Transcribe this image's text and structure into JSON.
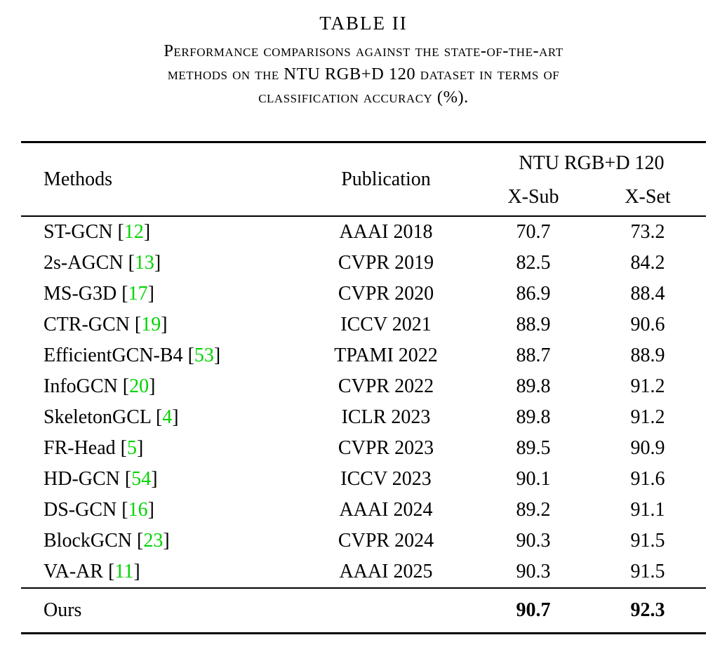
{
  "title": "TABLE II",
  "caption": {
    "lines": [
      "Performance comparisons against the state-of-the-art",
      "methods on the NTU RGB+D 120 dataset in terms of",
      "classification accuracy (%)."
    ]
  },
  "colors": {
    "citation_green": "#00d400"
  },
  "table": {
    "citation_format": {
      "open": "[",
      "close": "]"
    },
    "headers": {
      "methods": "Methods",
      "publication": "Publication",
      "group": "NTU RGB+D 120",
      "xsub": "X-Sub",
      "xset": "X-Set"
    },
    "rows": [
      {
        "method": "ST-GCN",
        "cite": "12",
        "publication": "AAAI 2018",
        "xsub": "70.7",
        "xset": "73.2"
      },
      {
        "method": "2s-AGCN",
        "cite": "13",
        "publication": "CVPR 2019",
        "xsub": "82.5",
        "xset": "84.2"
      },
      {
        "method": "MS-G3D",
        "cite": "17",
        "publication": "CVPR 2020",
        "xsub": "86.9",
        "xset": "88.4"
      },
      {
        "method": "CTR-GCN",
        "cite": "19",
        "publication": "ICCV 2021",
        "xsub": "88.9",
        "xset": "90.6"
      },
      {
        "method": "EfficientGCN-B4",
        "cite": "53",
        "publication": "TPAMI 2022",
        "xsub": "88.7",
        "xset": "88.9"
      },
      {
        "method": "InfoGCN",
        "cite": "20",
        "publication": "CVPR 2022",
        "xsub": "89.8",
        "xset": "91.2"
      },
      {
        "method": "SkeletonGCL",
        "cite": "4",
        "publication": "ICLR 2023",
        "xsub": "89.8",
        "xset": "91.2"
      },
      {
        "method": "FR-Head",
        "cite": "5",
        "publication": "CVPR 2023",
        "xsub": "89.5",
        "xset": "90.9"
      },
      {
        "method": "HD-GCN",
        "cite": "54",
        "publication": "ICCV 2023",
        "xsub": "90.1",
        "xset": "91.6"
      },
      {
        "method": "DS-GCN",
        "cite": "16",
        "publication": "AAAI 2024",
        "xsub": "89.2",
        "xset": "91.1"
      },
      {
        "method": "BlockGCN",
        "cite": "23",
        "publication": "CVPR 2024",
        "xsub": "90.3",
        "xset": "91.5"
      },
      {
        "method": "VA-AR",
        "cite": "11",
        "publication": "AAAI 2025",
        "xsub": "90.3",
        "xset": "91.5"
      }
    ],
    "ours": {
      "method": "Ours",
      "publication": "",
      "xsub": "90.7",
      "xset": "92.3"
    }
  }
}
